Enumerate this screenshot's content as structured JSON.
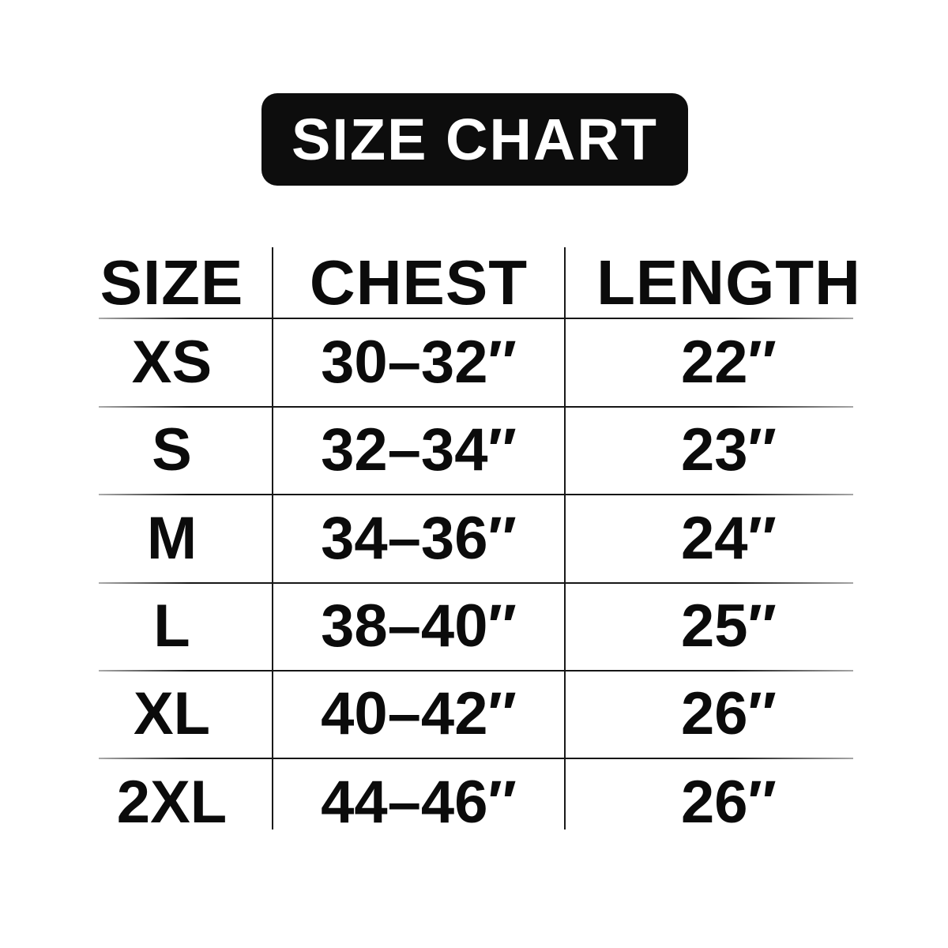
{
  "badge": {
    "label": "SIZE CHART",
    "background": "#0d0d0d",
    "text_color": "#ffffff"
  },
  "chart_data": {
    "type": "table",
    "title": "SIZE CHART",
    "columns": [
      "SIZE",
      "CHEST",
      "LENGTH"
    ],
    "rows": [
      [
        "XS",
        "30–32″",
        "22″"
      ],
      [
        "S",
        "32–34″",
        "23″"
      ],
      [
        "M",
        "34–36″",
        "24″"
      ],
      [
        "L",
        "38–40″",
        "25″"
      ],
      [
        "XL",
        "40–42″",
        "26″"
      ],
      [
        "2XL",
        "44–46″",
        "26″"
      ]
    ],
    "layout": {
      "background": "#ffffff",
      "text_color": "#0b0b0b",
      "divider_color": "#1a1a1a",
      "header_divider": true,
      "outer_border": false,
      "legend": false,
      "grid": "row-and-column-rules-only"
    }
  }
}
